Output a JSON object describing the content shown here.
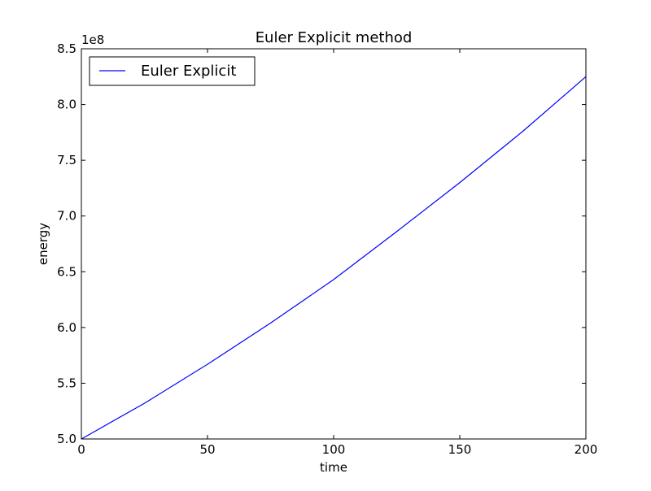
{
  "chart_data": {
    "type": "line",
    "title": "Euler Explicit method",
    "xlabel": "time",
    "ylabel": "energy",
    "y_offset_label": "1e8",
    "xlim": [
      0,
      200
    ],
    "ylim": [
      5.0,
      8.5
    ],
    "y_scale_factor": 100000000,
    "xticks": [
      "0",
      "50",
      "100",
      "150",
      "200"
    ],
    "yticks": [
      "5.0",
      "5.5",
      "6.0",
      "6.5",
      "7.0",
      "7.5",
      "8.0",
      "8.5"
    ],
    "grid": false,
    "legend": {
      "position": "upper-left",
      "entries": [
        "Euler Explicit"
      ]
    },
    "series": [
      {
        "name": "Euler Explicit",
        "color": "#0000ff",
        "x": [
          0,
          25,
          50,
          75,
          100,
          125,
          150,
          175,
          200
        ],
        "y": [
          5.0,
          5.32,
          5.67,
          6.04,
          6.43,
          6.86,
          7.3,
          7.76,
          8.25
        ]
      }
    ]
  }
}
